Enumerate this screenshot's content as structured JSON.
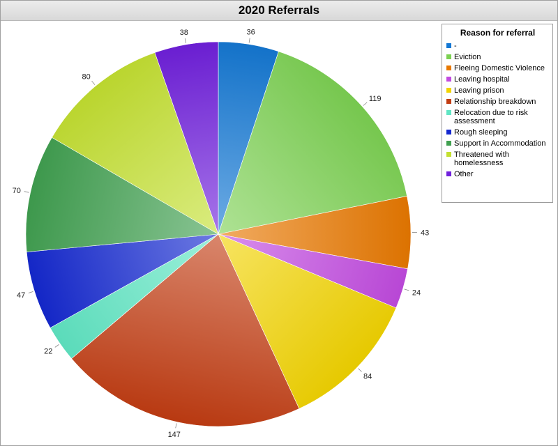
{
  "chart_data": {
    "type": "pie",
    "title": "2020 Referrals",
    "legend_title": "Reason for referral",
    "legend_position": "right",
    "slices": [
      {
        "label": "-",
        "value": 36,
        "color": "#1478d4"
      },
      {
        "label": "Eviction",
        "value": 119,
        "color": "#7cd152"
      },
      {
        "label": "Fleeing Domestic Violence",
        "value": 43,
        "color": "#e87800"
      },
      {
        "label": "Leaving hospital",
        "value": 24,
        "color": "#c24be0"
      },
      {
        "label": "Leaving prison",
        "value": 84,
        "color": "#f2d400"
      },
      {
        "label": "Relationship breakdown",
        "value": 147,
        "color": "#c23c12"
      },
      {
        "label": "Relocation due to risk assessment",
        "value": 22,
        "color": "#60e6c4"
      },
      {
        "label": "Rough sleeping",
        "value": 47,
        "color": "#1428d0"
      },
      {
        "label": "Support in Accommodation",
        "value": 70,
        "color": "#40a050"
      },
      {
        "label": "Threatened with homelessness",
        "value": 80,
        "color": "#c4e030"
      },
      {
        "label": "Other",
        "value": 38,
        "color": "#7020dc"
      }
    ]
  }
}
